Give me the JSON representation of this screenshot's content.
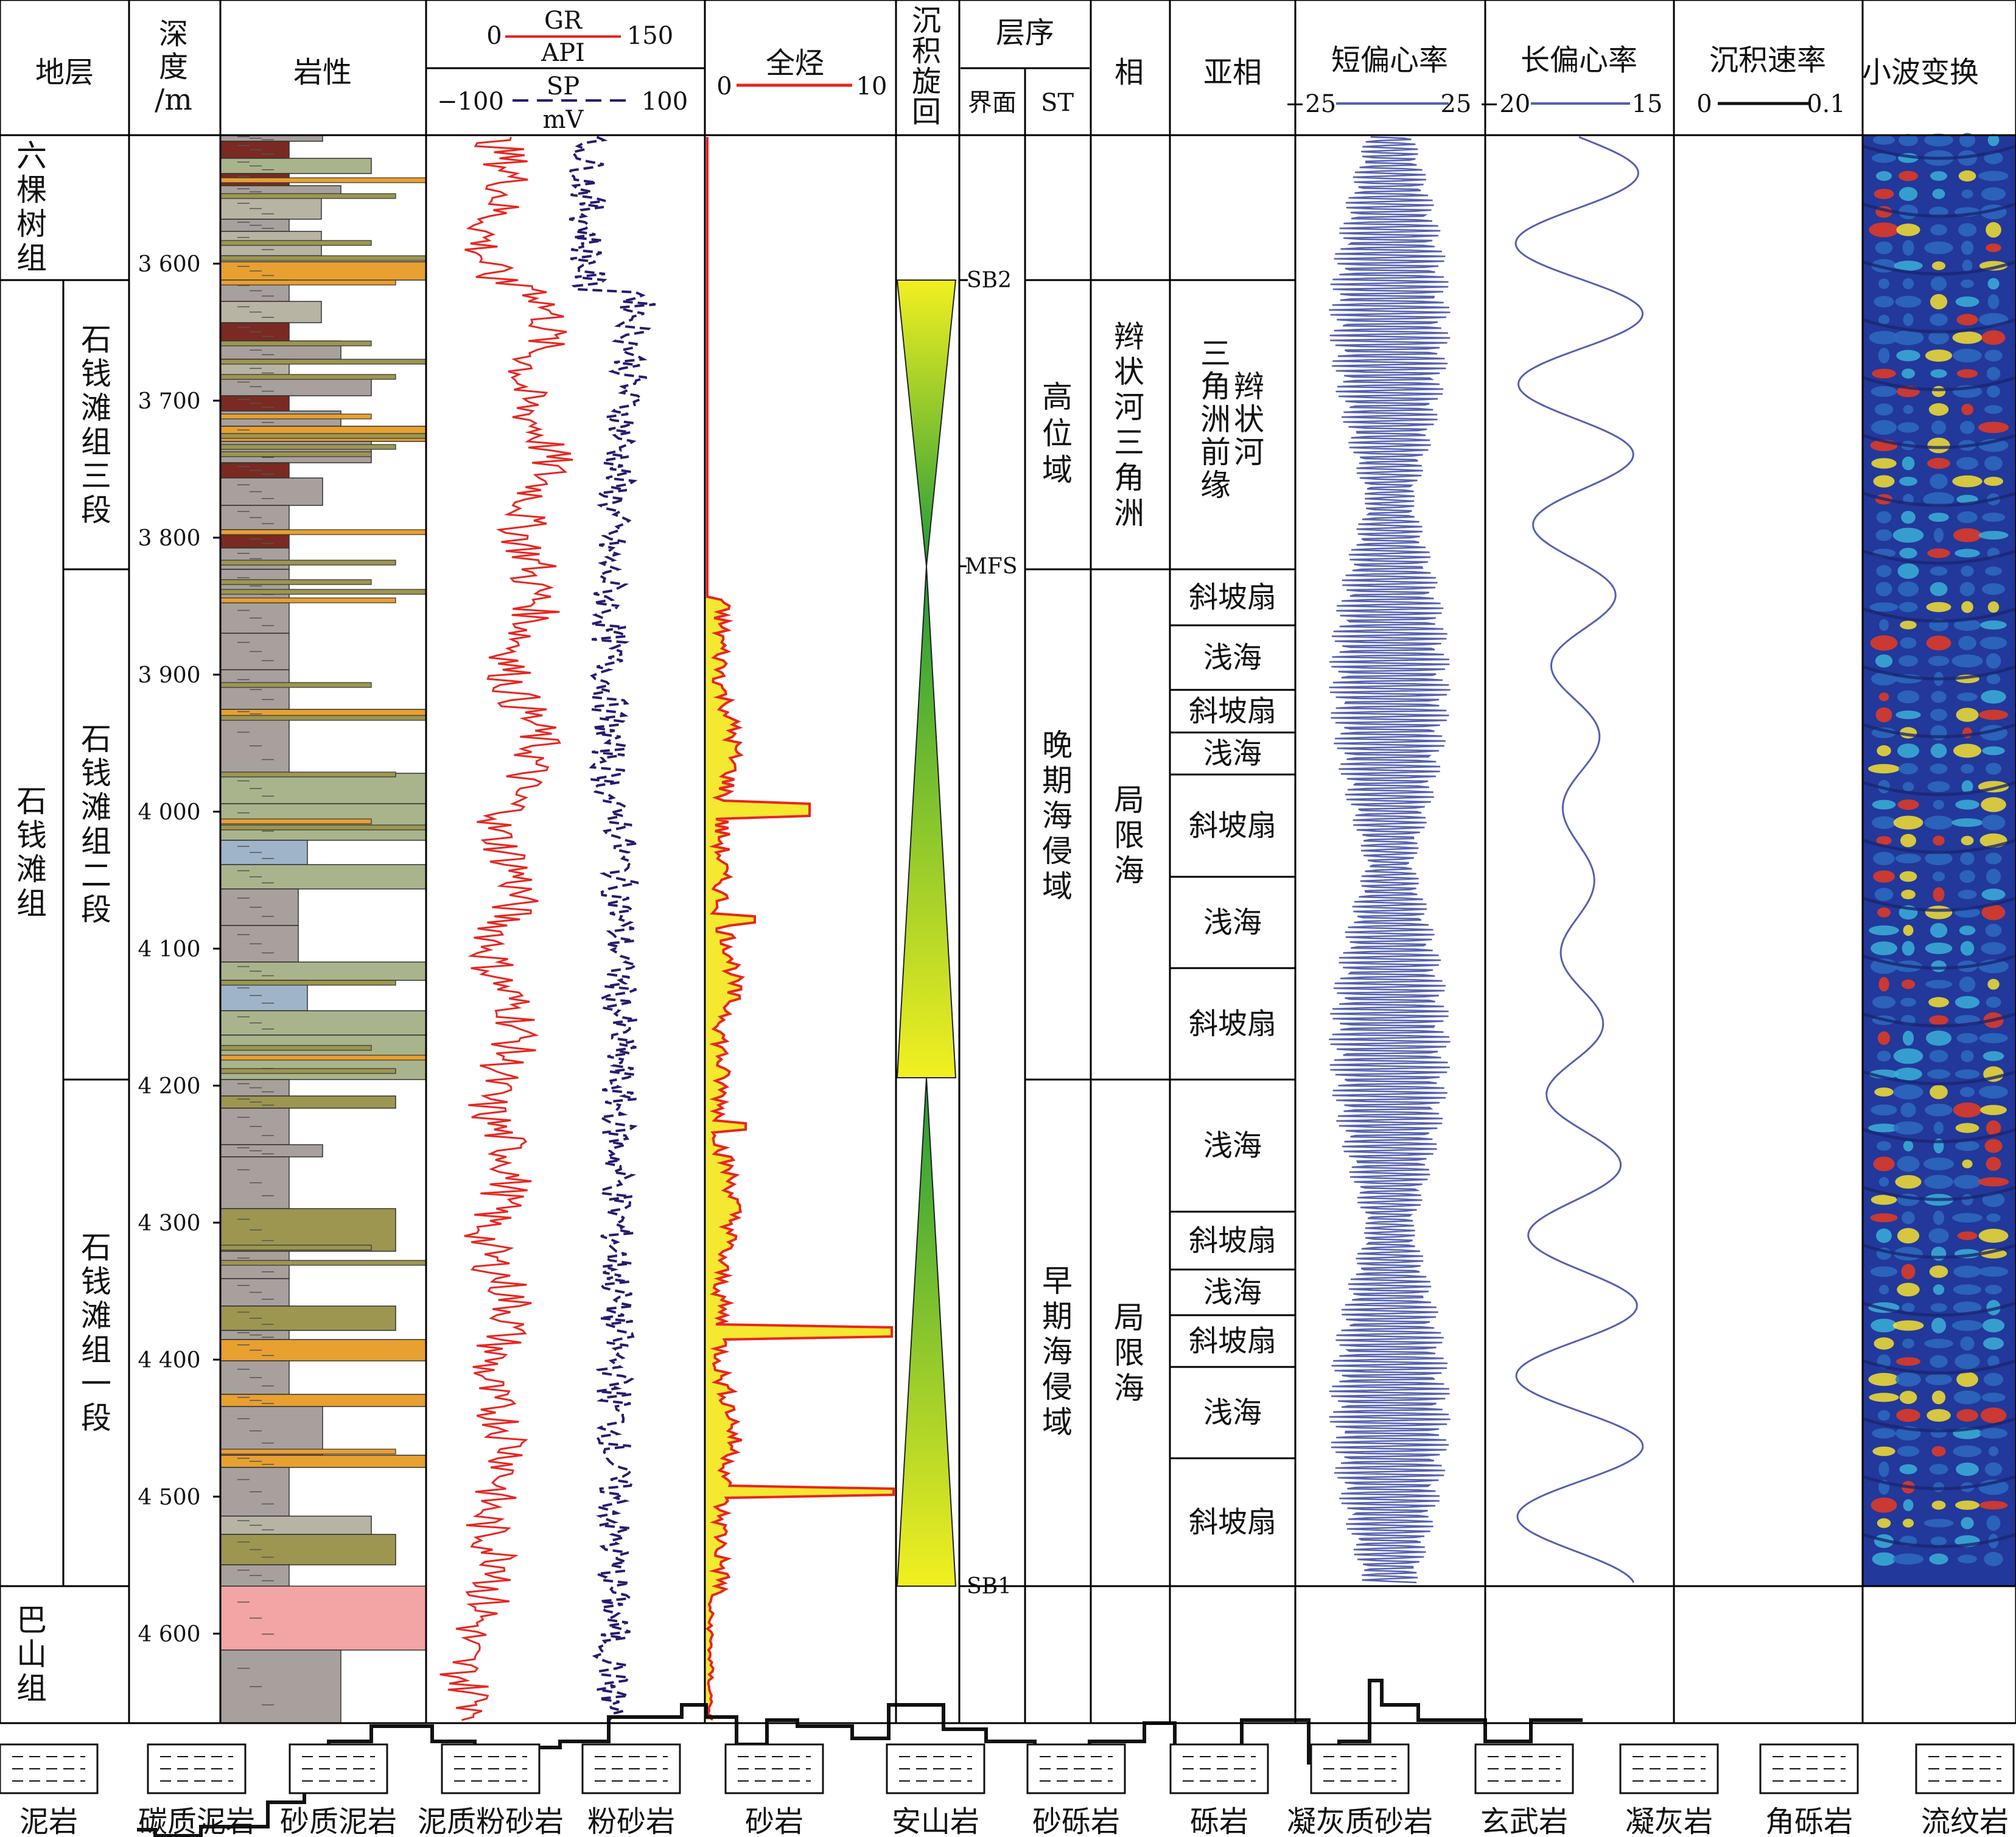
{
  "headers": {
    "strata": "地层",
    "depth": [
      "深",
      "度",
      "/m"
    ],
    "lithology": "岩性",
    "gr_name": "GR",
    "gr_unit": "API",
    "gr_min": "0",
    "gr_max": "150",
    "sp_name": "SP",
    "sp_unit": "mV",
    "sp_min": "−100",
    "sp_max": "100",
    "tg_name": "全烃",
    "tg_min": "0",
    "tg_max": "10",
    "cycle": [
      "沉",
      "积",
      "旋",
      "回"
    ],
    "sequence": "层序",
    "surface": "界面",
    "st": "ST",
    "facies": "相",
    "subfacies": "亚相",
    "short_ecc": "短偏心率",
    "short_min": "−25",
    "short_max": "25",
    "long_ecc": "长偏心率",
    "long_min": "−20",
    "long_max": "15",
    "rate": "沉积速率",
    "rate_min": "0",
    "rate_max": "0.1",
    "wavelet": "小波变换"
  },
  "depth_ticks": [
    "3 600",
    "3 700",
    "3 800",
    "3 900",
    "4 000",
    "4 100",
    "4 200",
    "4 300",
    "4 400",
    "4 500",
    "4 600"
  ],
  "formations": [
    {
      "chars": [
        "六",
        "棵",
        "树",
        "组"
      ]
    },
    {
      "chars": [
        "石",
        "钱",
        "滩",
        "组"
      ]
    },
    {
      "chars": [
        "巴",
        "山",
        "组"
      ]
    }
  ],
  "members": [
    {
      "chars": [
        "石",
        "钱",
        "滩",
        "组",
        "三",
        "段"
      ]
    },
    {
      "chars": [
        "石",
        "钱",
        "滩",
        "组",
        "二",
        "段"
      ]
    },
    {
      "chars": [
        "石",
        "钱",
        "滩",
        "组",
        "一",
        "段"
      ]
    }
  ],
  "surfaces": [
    "SB2",
    "MFS",
    "SB1"
  ],
  "systems_tracts": [
    {
      "chars": [
        "高",
        "位",
        "域"
      ]
    },
    {
      "chars": [
        "晚",
        "期",
        "海",
        "侵",
        "域"
      ]
    },
    {
      "chars": [
        "早",
        "期",
        "海",
        "侵",
        "域"
      ]
    }
  ],
  "facies": [
    {
      "chars": [
        "辫",
        "状",
        "河",
        "三",
        "角",
        "洲"
      ]
    },
    {
      "chars": [
        "局",
        "限",
        "海"
      ]
    },
    {
      "chars": [
        "局",
        "限",
        "海"
      ]
    }
  ],
  "subfacies_top": {
    "col1": [
      "三",
      "角",
      "洲",
      "前",
      "缘"
    ],
    "col2": [
      "辫",
      "状",
      "河"
    ]
  },
  "subfacies": [
    "斜坡扇",
    "浅海",
    "斜坡扇",
    "浅海",
    "斜坡扇",
    "浅海",
    "斜坡扇",
    "浅海",
    "斜坡扇",
    "浅海",
    "斜坡扇",
    "浅海",
    "斜坡扇"
  ],
  "legend": [
    "泥岩",
    "碳质泥岩",
    "砂质泥岩",
    "泥质粉砂岩",
    "粉砂岩",
    "砂岩",
    "安山岩",
    "砂砾岩",
    "砾岩",
    "凝灰质砂岩",
    "玄武岩",
    "凝灰岩",
    "角砾岩",
    "流纹岩"
  ],
  "colors": {
    "gr": "#e8251f",
    "sp": "#2a1a6e",
    "total_gas_fill": "#f5e830",
    "ecc": "#5560b0",
    "mudstone": "#a8a09c",
    "carbon_mud": "#7a2a22",
    "sandy_mud": "#b8b4a4",
    "siltstone": "#a9b48c",
    "sandstone": "#9c9650",
    "glutenite": "#e8a030",
    "andesite": "#f3a4a4",
    "blue_mud": "#9fb4c8",
    "cycle_yellow": "#f2f020",
    "cycle_green": "#1f9a3a"
  }
}
